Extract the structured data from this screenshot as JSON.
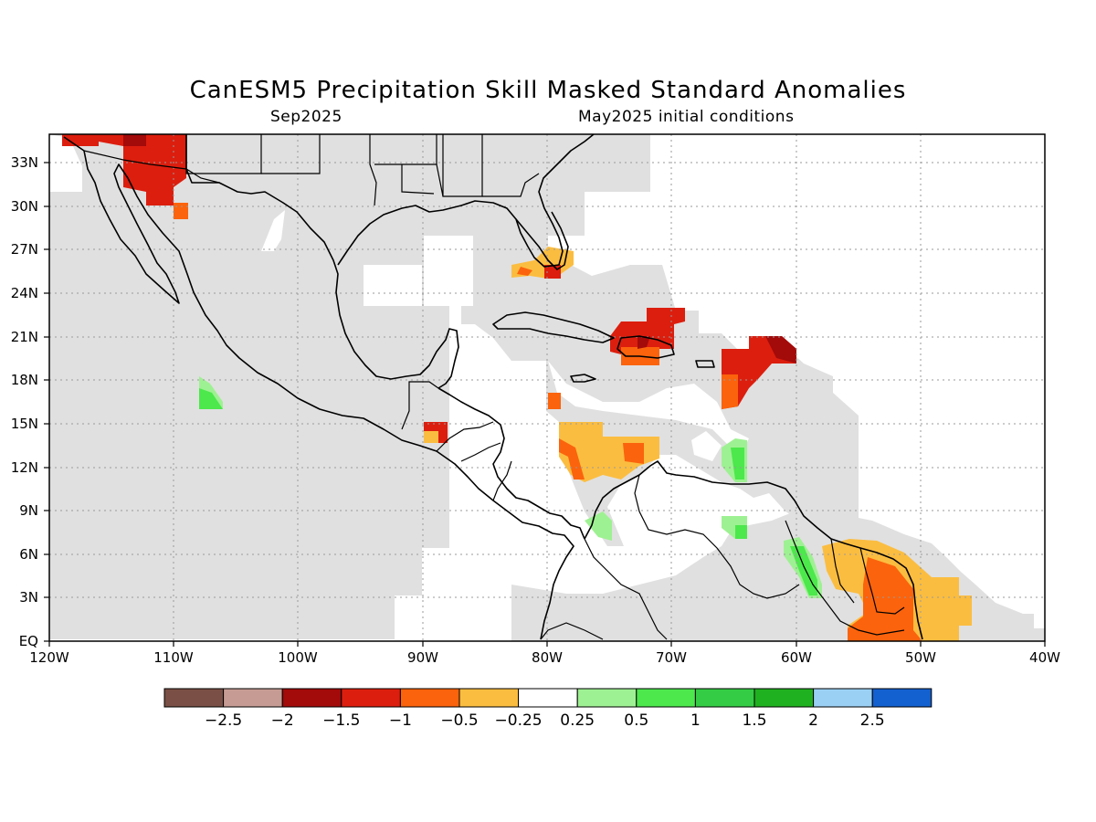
{
  "title": "CanESM5 Precipitation Skill Masked Standard Anomalies",
  "subtitle_left": "Sep2025",
  "subtitle_right": "May2025 initial conditions",
  "lon_ticks": [
    "120W",
    "110W",
    "100W",
    "90W",
    "80W",
    "70W",
    "60W",
    "50W",
    "40W"
  ],
  "lat_ticks": [
    "EQ",
    "3N",
    "6N",
    "9N",
    "12N",
    "15N",
    "18N",
    "21N",
    "24N",
    "27N",
    "30N",
    "33N"
  ],
  "colorbar": {
    "colors": [
      "#7a4f45",
      "#c69b93",
      "#a30a0a",
      "#dc1e0e",
      "#fb630c",
      "#fbbd40",
      "#ffffff",
      "#9ef192",
      "#4ce84c",
      "#33cc44",
      "#1fb11f",
      "#9bd0f5",
      "#1360d0"
    ],
    "labels": [
      "-2.5",
      "-2",
      "-1.5",
      "-1",
      "-0.5",
      "-0.25",
      "0.25",
      "0.5",
      "1",
      "1.5",
      "2",
      "2.5"
    ]
  },
  "mask_color": "#e0e0e0"
}
